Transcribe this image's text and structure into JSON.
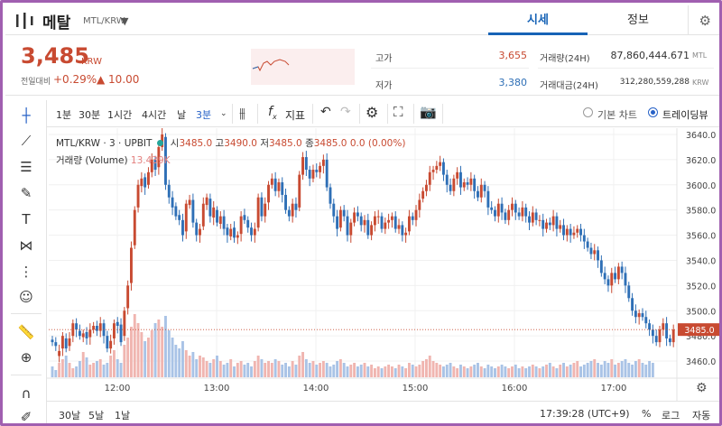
{
  "header": {
    "coin_name": "메탈",
    "pair": "MTL/KRW",
    "tabs": [
      "시세",
      "정보"
    ]
  },
  "summary": {
    "price": "3,485",
    "unit": "KRW",
    "change_label": "전일대비",
    "change_pct": "+0.29%",
    "change_amt": "▲ 10.00",
    "high_label": "고가",
    "high": "3,655",
    "low_label": "저가",
    "low": "3,380",
    "vol_label": "거래량(24H)",
    "vol": "87,860,444.671",
    "vol_unit": "MTL",
    "amt_label": "거래대금(24H)",
    "amt": "312,280,559,288",
    "amt_unit": "KRW"
  },
  "toolbar": {
    "intervals": [
      "1분",
      "30분",
      "1시간",
      "4시간",
      "날",
      "3분"
    ],
    "fx": "f",
    "indicator": "지표",
    "basic_chart": "기본 차트",
    "tradingview": "트레이딩뷰"
  },
  "legend": {
    "symbol": "MTL/KRW · 3 · UPBIT",
    "o_label": "시",
    "o": "3485.0",
    "h_label": "고",
    "h": "3490.0",
    "l_label": "저",
    "l": "3485.0",
    "c_label": "종",
    "c": "3485.0",
    "chg": "0.0 (0.00%)",
    "volume_label": "거래량 (Volume)",
    "volume": "13.439K"
  },
  "bottom": {
    "ranges": [
      "30날",
      "5날",
      "1날"
    ],
    "time": "17:39:28 (UTC+9)",
    "pct": "%",
    "log": "로그",
    "auto": "자동"
  },
  "chart_data": {
    "type": "candlestick",
    "x_ticks": [
      "12:00",
      "13:00",
      "14:00",
      "15:00",
      "16:00",
      "17:00"
    ],
    "y_ticks": [
      3460,
      3480,
      3500,
      3520,
      3540,
      3560,
      3580,
      3600,
      3620,
      3640
    ],
    "ylim": [
      3450,
      3645
    ],
    "last_price_label": "3485.0",
    "last_price": 3485,
    "up_color": "#c84a31",
    "down_color": "#2e6fb6",
    "vol_up_color": "#f0b5b0",
    "vol_down_color": "#a9c3e6",
    "candles_close": [
      3475,
      3472,
      3468,
      3480,
      3470,
      3478,
      3490,
      3485,
      3480,
      3482,
      3478,
      3485,
      3488,
      3484,
      3490,
      3480,
      3470,
      3476,
      3490,
      3488,
      3475,
      3500,
      3520,
      3550,
      3580,
      3600,
      3605,
      3598,
      3610,
      3620,
      3612,
      3630,
      3640,
      3600,
      3590,
      3582,
      3575,
      3572,
      3560,
      3585,
      3588,
      3570,
      3560,
      3565,
      3585,
      3590,
      3575,
      3582,
      3570,
      3575,
      3565,
      3560,
      3565,
      3558,
      3560,
      3575,
      3572,
      3566,
      3560,
      3565,
      3590,
      3575,
      3585,
      3600,
      3605,
      3595,
      3602,
      3592,
      3580,
      3575,
      3585,
      3580,
      3608,
      3622,
      3612,
      3605,
      3612,
      3610,
      3615,
      3620,
      3598,
      3585,
      3575,
      3565,
      3580,
      3575,
      3560,
      3570,
      3578,
      3575,
      3568,
      3572,
      3560,
      3568,
      3575,
      3575,
      3565,
      3570,
      3572,
      3575,
      3565,
      3568,
      3560,
      3562,
      3575,
      3572,
      3580,
      3588,
      3595,
      3600,
      3610,
      3612,
      3615,
      3618,
      3608,
      3600,
      3595,
      3605,
      3610,
      3598,
      3602,
      3600,
      3605,
      3595,
      3590,
      3600,
      3595,
      3582,
      3580,
      3575,
      3585,
      3578,
      3572,
      3580,
      3585,
      3578,
      3575,
      3582,
      3575,
      3570,
      3578,
      3572,
      3572,
      3565,
      3570,
      3568,
      3575,
      3565,
      3568,
      3560,
      3565,
      3560,
      3562,
      3565,
      3560,
      3555,
      3550,
      3545,
      3548,
      3540,
      3530,
      3525,
      3520,
      3530,
      3525,
      3535,
      3530,
      3520,
      3510,
      3500,
      3495,
      3498,
      3495,
      3490,
      3485,
      3480,
      3475,
      3485,
      3490,
      3478,
      3475,
      3485
    ],
    "candles_open_offset": [
      2,
      3,
      -4,
      -10,
      8,
      -6,
      -10,
      5,
      4,
      -3,
      5,
      -6,
      -3,
      4,
      -6,
      10,
      10,
      -6,
      -12,
      3,
      14,
      -20,
      -18,
      -28,
      -28,
      -18,
      -6,
      8,
      -10,
      -10,
      8,
      -16,
      -10,
      38,
      10,
      8,
      8,
      4,
      12,
      -22,
      -4,
      18,
      10,
      -5,
      -18,
      -6,
      14,
      -8,
      10,
      -6,
      10,
      6,
      -6,
      8,
      -2,
      -14,
      4,
      6,
      6,
      -5,
      -24,
      15,
      -10,
      -14,
      -5,
      10,
      -7,
      10,
      12,
      5,
      -10,
      5,
      -26,
      -14,
      10,
      7,
      -7,
      2,
      -5,
      -5,
      22,
      13,
      10,
      10,
      -14,
      5,
      15,
      -10,
      -8,
      3,
      7,
      -4,
      12,
      -8,
      -7,
      0,
      10,
      -5,
      -2,
      -3,
      10,
      -3,
      8,
      -2,
      -12,
      3,
      -8,
      -8,
      -6,
      -5,
      -10,
      -2,
      -3,
      -3,
      10,
      8,
      5,
      -10,
      -5,
      12,
      -4,
      2,
      -5,
      10,
      5,
      -10,
      5,
      13,
      2,
      5,
      -10,
      7,
      6,
      -8,
      -5,
      7,
      3,
      -7,
      7,
      5,
      -8,
      6,
      0,
      7,
      -5,
      2,
      -7,
      10,
      -3,
      8,
      -5,
      5,
      -2,
      -3,
      5,
      5,
      5,
      5,
      -3,
      8,
      10,
      5,
      5,
      -10,
      5,
      -10,
      5,
      10,
      10,
      10,
      5,
      -3,
      3,
      5,
      5,
      5,
      5,
      -10,
      -5,
      12,
      3,
      -10
    ],
    "volume": [
      6,
      4,
      8,
      10,
      12,
      8,
      5,
      6,
      9,
      14,
      11,
      7,
      8,
      9,
      10,
      7,
      8,
      12,
      15,
      10,
      8,
      18,
      22,
      28,
      35,
      30,
      25,
      20,
      22,
      26,
      30,
      32,
      28,
      34,
      26,
      22,
      18,
      16,
      20,
      15,
      12,
      14,
      10,
      12,
      11,
      9,
      8,
      10,
      12,
      9,
      7,
      8,
      10,
      6,
      8,
      9,
      7,
      8,
      6,
      9,
      12,
      10,
      8,
      9,
      8,
      10,
      9,
      7,
      8,
      6,
      9,
      7,
      12,
      14,
      10,
      8,
      9,
      7,
      8,
      9,
      8,
      6,
      7,
      9,
      10,
      8,
      6,
      7,
      8,
      6,
      7,
      8,
      6,
      7,
      5,
      6,
      5,
      6,
      7,
      6,
      5,
      7,
      6,
      5,
      8,
      7,
      6,
      7,
      9,
      10,
      12,
      9,
      8,
      7,
      6,
      7,
      8,
      6,
      5,
      7,
      6,
      5,
      6,
      7,
      8,
      6,
      5,
      7,
      6,
      5,
      6,
      7,
      6,
      5,
      6,
      7,
      5,
      6,
      5,
      6,
      7,
      6,
      5,
      6,
      7,
      8,
      6,
      5,
      7,
      8,
      6,
      7,
      8,
      9,
      6,
      7,
      8,
      9,
      10,
      8,
      7,
      9,
      8,
      10,
      7,
      8,
      9,
      10,
      8,
      7,
      9,
      10,
      8,
      7,
      9,
      8
    ]
  }
}
